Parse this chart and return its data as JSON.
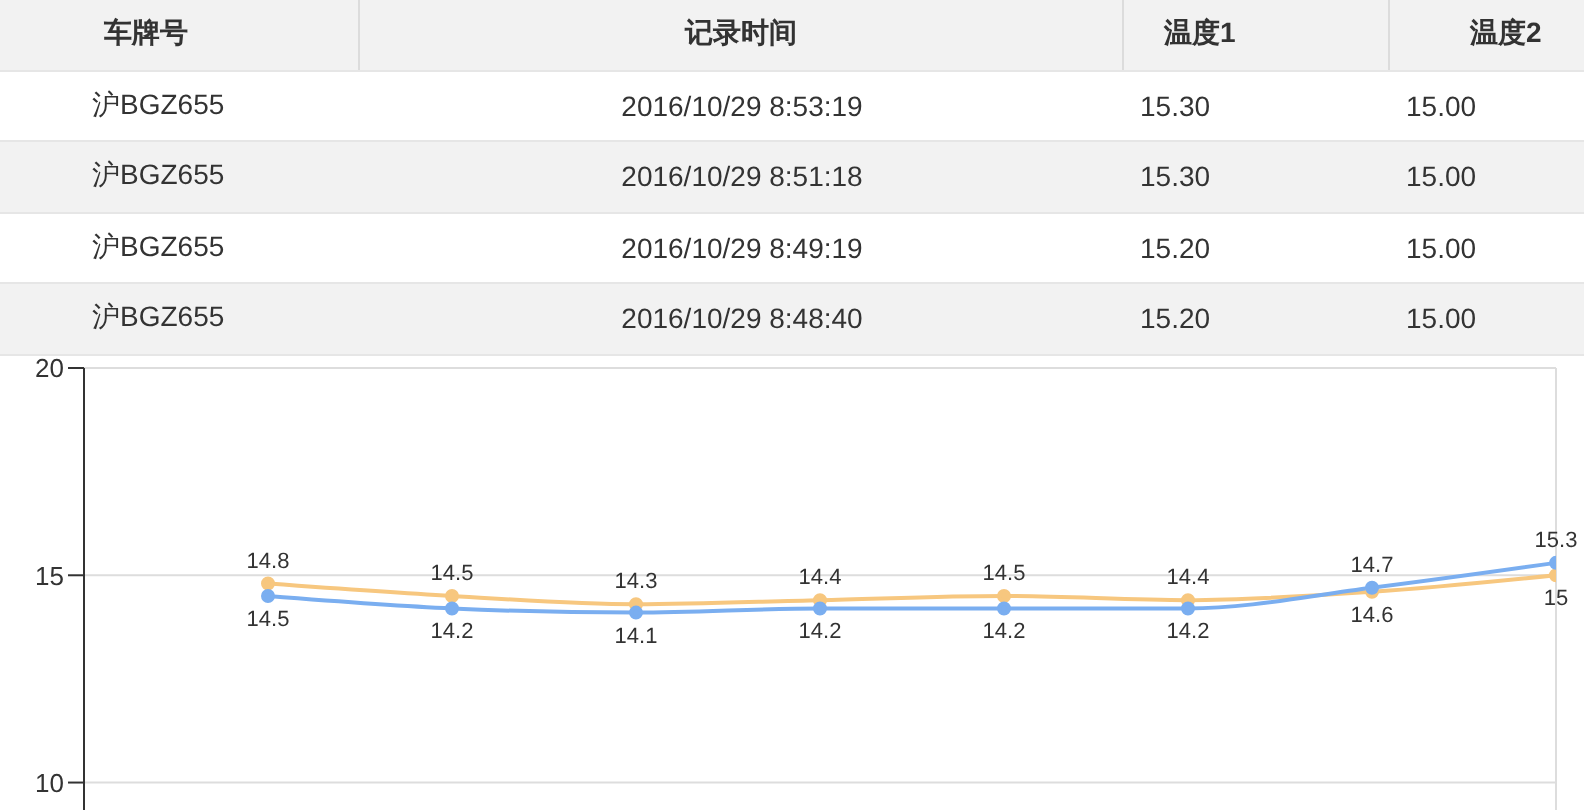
{
  "chart_data": [
    {
      "type": "other",
      "annotations": [
        "车牌号",
        "记录时间",
        "温度1",
        "温度2",
        "沪BGZ655",
        "2016/10/29 8:53:19",
        "15.30",
        "15.00",
        "沪BGZ655",
        "2016/10/29 8:51:18",
        "15.30",
        "15.00",
        "沪BGZ655",
        "2016/10/29 8:49:19",
        "15.20",
        "15.00",
        "沪BGZ655",
        "2016/10/29 8:48:40",
        "15.20",
        "15.00"
      ]
    },
    {
      "type": "line",
      "categories": [
        null,
        null,
        null,
        null,
        null,
        null,
        null,
        null
      ],
      "series": [
        {
          "color": "#f7c77f",
          "values": [
            14.8,
            14.5,
            14.3,
            14.4,
            14.5,
            14.4,
            14.6,
            15
          ]
        },
        {
          "color": "#7aaef0",
          "values": [
            14.5,
            14.2,
            14.1,
            14.2,
            14.2,
            14.2,
            14.7,
            15.3
          ]
        }
      ],
      "ylim": [
        9,
        20
      ],
      "yticks": [
        10,
        15,
        20
      ],
      "grid": true,
      "marker": "circle",
      "data_labels": true,
      "tick_labels": "y"
    }
  ]
}
